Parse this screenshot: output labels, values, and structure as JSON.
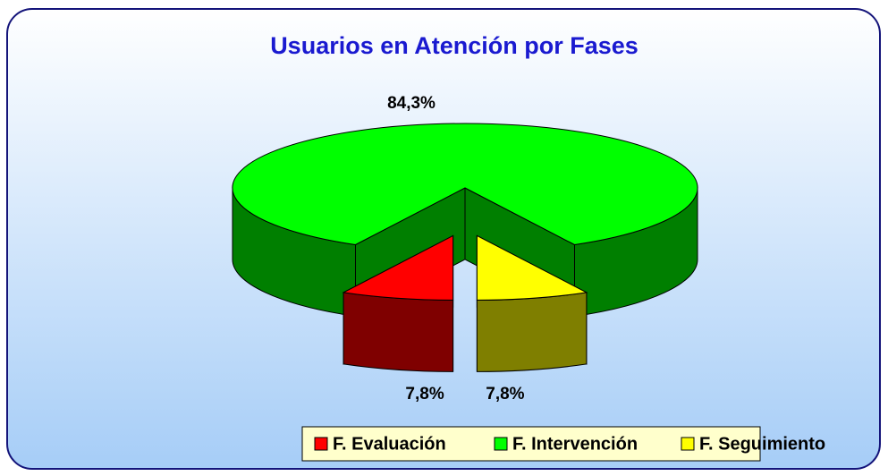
{
  "chart_data": {
    "type": "pie3d",
    "title": "Usuarios en Atención por Fases",
    "categories": [
      "F. Evaluación",
      "F. Intervención",
      "F. Seguimiento"
    ],
    "values": [
      7.8,
      84.3,
      7.8
    ],
    "value_labels": [
      "7,8%",
      "84,3%",
      "7,8%"
    ],
    "colors": [
      "#ff0000",
      "#00ff00",
      "#ffff00"
    ],
    "legend": "bottom"
  }
}
